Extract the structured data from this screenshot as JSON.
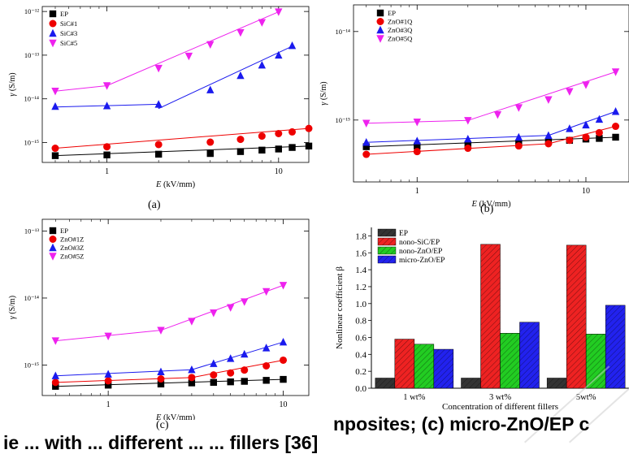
{
  "chart_data": [
    {
      "type": "scatter",
      "panel": "(a)",
      "xlabel_var": "E",
      "xlabel_unit": " (kV/mm)",
      "ylabel_var": "γ",
      "ylabel_unit": " (S/m)",
      "xscale": "log",
      "yscale": "log",
      "xlim": [
        0.42,
        15
      ],
      "ylim": [
        3.5e-16,
        1.3e-12
      ],
      "xticks": [
        {
          "v": 1,
          "label": "1"
        },
        {
          "v": 10,
          "label": "10"
        }
      ],
      "yticks": [
        {
          "v": 1e-15,
          "label": "10⁻¹⁵"
        },
        {
          "v": 1e-14,
          "label": "10⁻¹⁴"
        },
        {
          "v": 1e-13,
          "label": "10⁻¹³"
        },
        {
          "v": 1e-12,
          "label": "10⁻¹²"
        }
      ],
      "legend_position": "top-left",
      "series": [
        {
          "name": "EP",
          "color": "#000000",
          "marker": "square",
          "x": [
            0.5,
            1,
            2,
            4,
            6,
            8,
            10,
            12,
            15
          ],
          "y": [
            5e-16,
            5.2e-16,
            5.4e-16,
            5.6e-16,
            6.2e-16,
            6.7e-16,
            7.1e-16,
            7.7e-16,
            8.3e-16
          ],
          "fit": [
            [
              0.5,
              5e-16
            ],
            [
              15,
              8.3e-16
            ]
          ]
        },
        {
          "name": "SiC#1",
          "color": "#ee0000",
          "marker": "circle",
          "x": [
            0.5,
            1,
            2,
            4,
            6,
            8,
            10,
            12,
            15
          ],
          "y": [
            7.4e-16,
            8e-16,
            9e-16,
            1.02e-15,
            1.18e-15,
            1.4e-15,
            1.6e-15,
            1.75e-15,
            2.1e-15
          ],
          "fit": [
            [
              0.5,
              7.4e-16
            ],
            [
              15,
              2.1e-15
            ]
          ]
        },
        {
          "name": "SiC#3",
          "color": "#1a1aee",
          "marker": "triangle-up",
          "x": [
            0.5,
            1,
            2,
            4,
            6,
            8,
            10,
            12
          ],
          "y": [
            6.7e-15,
            6.9e-15,
            7.5e-15,
            1.6e-14,
            3.4e-14,
            5.9e-14,
            1e-13,
            1.65e-13
          ],
          "fit": [
            [
              0.5,
              6.5e-15
            ],
            [
              2,
              7.5e-15
            ],
            [
              2,
              6e-15
            ],
            [
              12,
              1.6e-13
            ]
          ]
        },
        {
          "name": "SiC#5",
          "color": "#ee22ee",
          "marker": "triangle-down",
          "x": [
            0.5,
            1,
            2,
            3,
            4,
            6,
            8,
            10
          ],
          "y": [
            1.5e-14,
            2e-14,
            5e-14,
            9.5e-14,
            1.75e-13,
            3.3e-13,
            5.6e-13,
            9.8e-13
          ],
          "fit": [
            [
              0.5,
              1.5e-14
            ],
            [
              1,
              2e-14
            ],
            [
              10,
              9.8e-13
            ]
          ]
        }
      ]
    },
    {
      "type": "scatter",
      "panel": "(b)",
      "xlabel_var": "E",
      "xlabel_unit": " (kV/mm)",
      "ylabel_var": "γ",
      "ylabel_unit": " (S/m)",
      "xscale": "log",
      "yscale": "log",
      "xlim": [
        0.42,
        18
      ],
      "ylim": [
        2e-16,
        2e-14
      ],
      "xticks": [
        {
          "v": 1,
          "label": "1"
        },
        {
          "v": 10,
          "label": "10"
        }
      ],
      "yticks": [
        {
          "v": 1e-15,
          "label": "10⁻¹⁵"
        },
        {
          "v": 1e-14,
          "label": "10⁻¹⁴"
        }
      ],
      "legend_position": "top-left",
      "series": [
        {
          "name": "EP",
          "color": "#000000",
          "marker": "square",
          "x": [
            0.5,
            1,
            2,
            4,
            6,
            8,
            10,
            12,
            15
          ],
          "y": [
            5e-16,
            5.1e-16,
            5.3e-16,
            5.5e-16,
            5.7e-16,
            5.9e-16,
            6.1e-16,
            6.2e-16,
            6.4e-16
          ],
          "fit": [
            [
              0.5,
              5e-16
            ],
            [
              15,
              6.4e-16
            ]
          ]
        },
        {
          "name": "ZnO#1Q",
          "color": "#ee0000",
          "marker": "circle",
          "x": [
            0.5,
            1,
            2,
            4,
            6,
            8,
            10,
            12,
            15
          ],
          "y": [
            4.1e-16,
            4.4e-16,
            4.8e-16,
            5.1e-16,
            5.4e-16,
            5.9e-16,
            6.4e-16,
            7.2e-16,
            8.5e-16
          ],
          "fit": [
            [
              0.5,
              4.1e-16
            ],
            [
              6,
              5.4e-16
            ],
            [
              15,
              8.5e-16
            ]
          ]
        },
        {
          "name": "ZnO#3Q",
          "color": "#1a1aee",
          "marker": "triangle-up",
          "x": [
            0.5,
            1,
            2,
            4,
            6,
            8,
            10,
            12,
            15
          ],
          "y": [
            5.6e-16,
            5.8e-16,
            6.1e-16,
            6.4e-16,
            6.7e-16,
            8e-16,
            8.8e-16,
            1.02e-15,
            1.25e-15
          ],
          "fit": [
            [
              0.5,
              5.6e-16
            ],
            [
              6,
              6.7e-16
            ],
            [
              15,
              1.25e-15
            ]
          ]
        },
        {
          "name": "ZnO#5Q",
          "color": "#ee22ee",
          "marker": "triangle-down",
          "x": [
            0.5,
            1,
            2,
            3,
            4,
            6,
            8,
            10,
            15
          ],
          "y": [
            9.2e-16,
            9.5e-16,
            9.9e-16,
            1.15e-15,
            1.38e-15,
            1.7e-15,
            2.1e-15,
            2.5e-15,
            3.5e-15
          ],
          "fit": [
            [
              0.5,
              9.2e-16
            ],
            [
              2,
              9.9e-16
            ],
            [
              15,
              3.5e-15
            ]
          ]
        }
      ]
    },
    {
      "type": "scatter",
      "panel": "(c)",
      "xlabel_var": "E",
      "xlabel_unit": " (kV/mm)",
      "ylabel_var": "γ",
      "ylabel_unit": " (S/m)",
      "xscale": "log",
      "yscale": "log",
      "xlim": [
        0.42,
        14
      ],
      "ylim": [
        3.5e-16,
        1.5e-13
      ],
      "xticks": [
        {
          "v": 1,
          "label": "1"
        },
        {
          "v": 10,
          "label": "10"
        }
      ],
      "yticks": [
        {
          "v": 1e-15,
          "label": "10⁻¹⁵"
        },
        {
          "v": 1e-14,
          "label": "10⁻¹⁴"
        },
        {
          "v": 1e-13,
          "label": "10⁻¹³"
        }
      ],
      "legend_position": "top-left",
      "series": [
        {
          "name": "EP",
          "color": "#000000",
          "marker": "square",
          "x": [
            0.5,
            1,
            2,
            3,
            4,
            5,
            6,
            8,
            10
          ],
          "y": [
            4.8e-16,
            5e-16,
            5.2e-16,
            5.4e-16,
            5.5e-16,
            5.6e-16,
            5.7e-16,
            5.9e-16,
            6.1e-16
          ],
          "fit": [
            [
              0.5,
              4.8e-16
            ],
            [
              10,
              6.1e-16
            ]
          ]
        },
        {
          "name": "ZnO#1Z",
          "color": "#ee0000",
          "marker": "circle",
          "x": [
            0.5,
            1,
            2,
            3,
            4,
            5,
            6,
            8,
            10
          ],
          "y": [
            5.5e-16,
            5.8e-16,
            6.2e-16,
            6.5e-16,
            7.1e-16,
            7.6e-16,
            8.4e-16,
            9.7e-16,
            1.18e-15
          ],
          "fit": [
            [
              0.5,
              5.5e-16
            ],
            [
              3,
              6.5e-16
            ],
            [
              10,
              1.18e-15
            ]
          ]
        },
        {
          "name": "ZnO#3Z",
          "color": "#1a1aee",
          "marker": "triangle-up",
          "x": [
            0.5,
            1,
            2,
            3,
            4,
            5,
            6,
            8,
            10
          ],
          "y": [
            6.9e-16,
            7.3e-16,
            7.9e-16,
            8.5e-16,
            1.05e-15,
            1.25e-15,
            1.45e-15,
            1.8e-15,
            2.2e-15
          ],
          "fit": [
            [
              0.5,
              6.9e-16
            ],
            [
              3,
              8.5e-16
            ],
            [
              10,
              2.2e-15
            ]
          ]
        },
        {
          "name": "ZnO#5Z",
          "color": "#ee22ee",
          "marker": "triangle-down",
          "x": [
            0.5,
            1,
            2,
            3,
            4,
            5,
            6,
            8,
            10
          ],
          "y": [
            2.3e-15,
            2.7e-15,
            3.3e-15,
            4.5e-15,
            6e-15,
            7.2e-15,
            8.8e-15,
            1.25e-14,
            1.55e-14
          ],
          "fit": [
            [
              0.5,
              2.3e-15
            ],
            [
              2,
              3.3e-15
            ],
            [
              10,
              1.55e-14
            ]
          ]
        }
      ]
    },
    {
      "type": "bar",
      "panel": "(d)",
      "categories": [
        "1 wt%",
        "3 wt%",
        "5wt%"
      ],
      "xlabel": "Concentration of different fillers",
      "ylabel": "Nonlinear coefficient β",
      "ylim": [
        0,
        1.9
      ],
      "yticks": [
        "0.0",
        "0.2",
        "0.4",
        "0.6",
        "0.8",
        "1.0",
        "1.2",
        "1.4",
        "1.6",
        "1.8"
      ],
      "legend_position": "top-left",
      "series": [
        {
          "name": "EP",
          "color": "#333333",
          "values": [
            0.12,
            0.12,
            0.12
          ]
        },
        {
          "name": "nono-SiC/EP",
          "color": "#ee2222",
          "values": [
            0.58,
            1.7,
            1.69
          ]
        },
        {
          "name": "nono-ZnO/EP",
          "color": "#22cc22",
          "values": [
            0.52,
            0.65,
            0.64
          ]
        },
        {
          "name": "micro-ZnO/EP",
          "color": "#2222ee",
          "values": [
            0.46,
            0.78,
            0.98
          ]
        }
      ]
    }
  ],
  "captions": {
    "a": "(a)",
    "b": "(b)",
    "c": "(c)"
  },
  "footer": {
    "line1": "nposites; (c) micro-ZnO/EP c",
    "line2": "ie ... with ... different ... ... fillers [36]"
  }
}
